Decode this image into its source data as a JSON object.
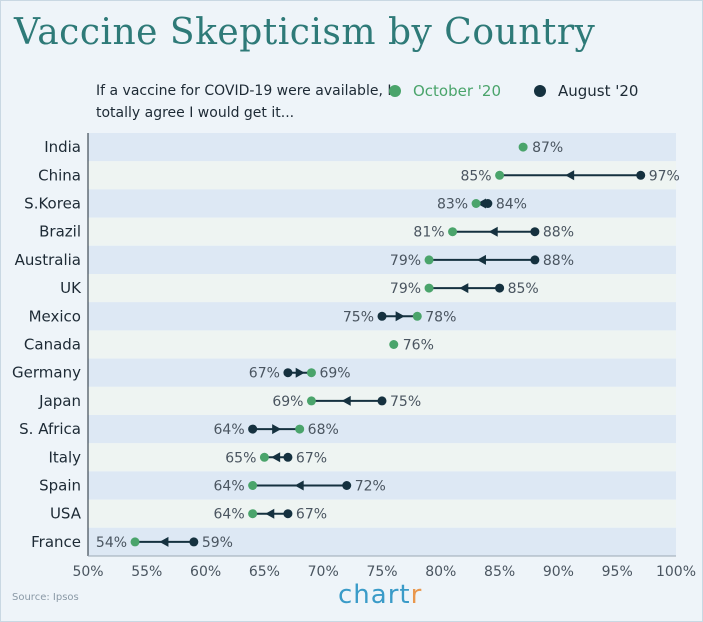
{
  "title": "Vaccine Skepticism by Country",
  "question": "If a vaccine for COVID-19 were available, I totally agree I would get it...",
  "legend": {
    "october": "October '20",
    "august": "August '20"
  },
  "colors": {
    "october": "#4aa46b",
    "august": "#15313f",
    "band_dark": "#dde8f4",
    "band_light": "#eef4f2",
    "title": "#2e7a78",
    "brand": "#3a9bc8",
    "brand_accent": "#e9974d"
  },
  "source": "Source: Ipsos",
  "brand": {
    "main": "chart",
    "accent": "r"
  },
  "chart_data": {
    "type": "dumbbell",
    "title": "Vaccine Skepticism by Country",
    "xlim": [
      50,
      100
    ],
    "x_ticks": [
      "50%",
      "55%",
      "60%",
      "65%",
      "70%",
      "75%",
      "80%",
      "85%",
      "90%",
      "95%",
      "100%"
    ],
    "tick_values": [
      50,
      55,
      60,
      65,
      70,
      75,
      80,
      85,
      90,
      95,
      100
    ],
    "series": [
      {
        "name": "October '20",
        "key": "october"
      },
      {
        "name": "August '20",
        "key": "august"
      }
    ],
    "rows": [
      {
        "country": "India",
        "october": 87,
        "august": null
      },
      {
        "country": "China",
        "october": 85,
        "august": 97
      },
      {
        "country": "S.Korea",
        "october": 83,
        "august": 84
      },
      {
        "country": "Brazil",
        "october": 81,
        "august": 88
      },
      {
        "country": "Australia",
        "october": 79,
        "august": 88
      },
      {
        "country": "UK",
        "october": 79,
        "august": 85
      },
      {
        "country": "Mexico",
        "october": 78,
        "august": 75
      },
      {
        "country": "Canada",
        "october": 76,
        "august": null
      },
      {
        "country": "Germany",
        "october": 69,
        "august": 67
      },
      {
        "country": "Japan",
        "october": 69,
        "august": 75
      },
      {
        "country": "S. Africa",
        "october": 68,
        "august": 64
      },
      {
        "country": "Italy",
        "october": 65,
        "august": 67
      },
      {
        "country": "Spain",
        "october": 64,
        "august": 72
      },
      {
        "country": "USA",
        "october": 64,
        "august": 67
      },
      {
        "country": "France",
        "october": 54,
        "august": 59
      }
    ]
  }
}
